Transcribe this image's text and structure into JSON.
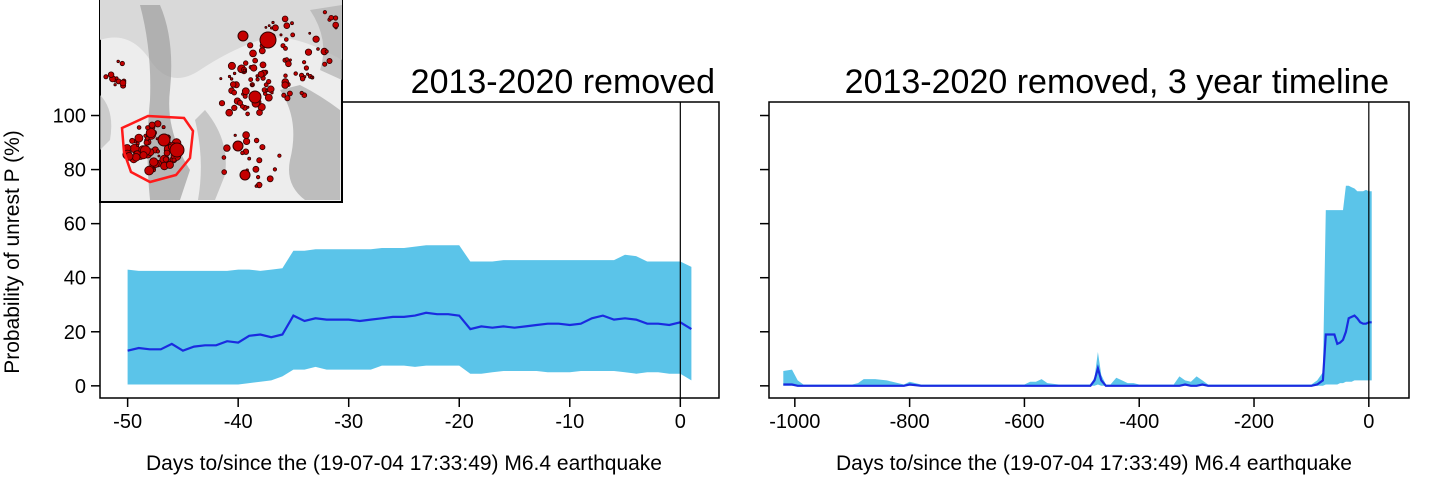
{
  "chart_data": [
    {
      "type": "area",
      "title": "2013-2020 removed",
      "xlabel": "Days to/since the (19-07-04 17:33:49) M6.4 earthquake",
      "ylabel": "Probability of unrest P (%)",
      "xlim": [
        -52.5,
        3.5
      ],
      "ylim": [
        -4.5,
        105
      ],
      "xticks": [
        -50,
        -40,
        -30,
        -20,
        -10,
        0
      ],
      "yticks": [
        0,
        20,
        40,
        60,
        80,
        100
      ],
      "event_line_x": 0,
      "band_color": "#5BC4E9",
      "line_color": "#1A2BE0",
      "x": [
        -50,
        -49,
        -48,
        -47,
        -46,
        -45,
        -44,
        -43,
        -42,
        -41,
        -40,
        -39,
        -38,
        -37,
        -36,
        -35,
        -34,
        -33,
        -32,
        -31,
        -30,
        -29,
        -28,
        -27,
        -26,
        -25,
        -24,
        -23,
        -22,
        -21,
        -20,
        -19,
        -18,
        -17,
        -16,
        -15,
        -14,
        -13,
        -12,
        -11,
        -10,
        -9,
        -8,
        -7,
        -6,
        -5,
        -4,
        -3,
        -2,
        -1,
        0,
        1
      ],
      "median": [
        13,
        14,
        13.5,
        13.5,
        15.5,
        13,
        14.5,
        15,
        15,
        16.5,
        16,
        18.5,
        19,
        18,
        19,
        26,
        24,
        25,
        24.5,
        24.5,
        24.5,
        24,
        24.5,
        25,
        25.5,
        25.5,
        26,
        27,
        26.5,
        26.5,
        26,
        21,
        22,
        21.5,
        22,
        21.5,
        22,
        22.5,
        23,
        23,
        22.5,
        23,
        25,
        26,
        24.5,
        25,
        24.5,
        23,
        23,
        22.5,
        23.5,
        21
      ],
      "upper": [
        43,
        42.5,
        42.5,
        42.5,
        42.5,
        42.5,
        42.5,
        42.5,
        42.5,
        42.5,
        43,
        43,
        42.5,
        43,
        43.5,
        50,
        50,
        50.5,
        50.5,
        50.5,
        50.5,
        50.5,
        50.5,
        51,
        51,
        51,
        51.5,
        52,
        52,
        52,
        52,
        46,
        46,
        46,
        46.5,
        46.5,
        46.5,
        46.5,
        46.5,
        46.5,
        46.5,
        46.5,
        46.5,
        46.5,
        46.5,
        48.5,
        48,
        46,
        46,
        46,
        46,
        44
      ],
      "lower": [
        0.5,
        0.5,
        0.5,
        0.5,
        0.5,
        0.5,
        0.5,
        0.5,
        0.5,
        0.5,
        0.5,
        1,
        1.5,
        2,
        3.5,
        6,
        6,
        7,
        6,
        6,
        6,
        6,
        6,
        7.5,
        7.5,
        7.5,
        7,
        7.5,
        7.5,
        7.5,
        7.5,
        4.5,
        4.5,
        5,
        5.5,
        5.5,
        5.5,
        5.5,
        5,
        5,
        5,
        5.5,
        5.5,
        5.5,
        5.5,
        5,
        4.5,
        5,
        5,
        4.5,
        4.5,
        2
      ]
    },
    {
      "type": "area",
      "title": "2013-2020 removed, 3 year timeline",
      "xlabel": "Days to/since the (19-07-04 17:33:49) M6.4 earthquake",
      "ylabel": "",
      "xlim": [
        -1045,
        70
      ],
      "ylim": [
        -4.5,
        105
      ],
      "xticks": [
        -1000,
        -800,
        -600,
        -400,
        -200,
        0
      ],
      "yticks": [
        0,
        20,
        40,
        60,
        80,
        100
      ],
      "event_line_x": 0,
      "band_color": "#5BC4E9",
      "line_color": "#1A2BE0",
      "x": [
        -1020,
        -1005,
        -995,
        -985,
        -950,
        -900,
        -890,
        -880,
        -860,
        -840,
        -820,
        -810,
        -800,
        -780,
        -760,
        -740,
        -700,
        -600,
        -590,
        -580,
        -570,
        -560,
        -540,
        -520,
        -500,
        -485,
        -478,
        -472,
        -466,
        -458,
        -450,
        -440,
        -430,
        -420,
        -410,
        -400,
        -380,
        -360,
        -350,
        -340,
        -330,
        -320,
        -310,
        -300,
        -290,
        -280,
        -260,
        -220,
        -180,
        -140,
        -110,
        -100,
        -90,
        -80,
        -75,
        -70,
        -60,
        -55,
        -50,
        -45,
        -40,
        -35,
        -30,
        -25,
        -20,
        -15,
        -10,
        -5,
        0,
        5
      ],
      "median": [
        0.5,
        0.5,
        0,
        0,
        0,
        0,
        0,
        0,
        0,
        0,
        0,
        0,
        0.5,
        0,
        0,
        0,
        0,
        0,
        0,
        0,
        0,
        0,
        0,
        0,
        0,
        0,
        2,
        6.5,
        2,
        0,
        0,
        0,
        0,
        0,
        0,
        0,
        0,
        0,
        0,
        0,
        0,
        0.5,
        0,
        0,
        0.5,
        0,
        0,
        0,
        0,
        0,
        0,
        0,
        0.5,
        2,
        19,
        19,
        19,
        15.5,
        16,
        17,
        20,
        25,
        25.5,
        26,
        25,
        23.5,
        23,
        23,
        23.5,
        23.5
      ],
      "upper": [
        5.5,
        6,
        2,
        0.5,
        0.5,
        0.5,
        1,
        2.5,
        2.5,
        2,
        1,
        0.5,
        1.5,
        0.5,
        0.5,
        0.5,
        0.5,
        0.5,
        1.5,
        1.5,
        2.5,
        1,
        0.5,
        0.5,
        0.5,
        0.5,
        3,
        12.5,
        4,
        0.5,
        0.5,
        3,
        2,
        1,
        1,
        0.5,
        0.5,
        0.5,
        0.5,
        0.5,
        3.5,
        2,
        1.5,
        3.5,
        2,
        0.5,
        0.5,
        0.5,
        0.5,
        0.5,
        0.5,
        0.5,
        2,
        5,
        65,
        65,
        65,
        65,
        65,
        65,
        74,
        74,
        73.5,
        73,
        72,
        72,
        72,
        72.5,
        72,
        72
      ],
      "lower": [
        0,
        0,
        0,
        0,
        0,
        0,
        0,
        0,
        0,
        0,
        0,
        0,
        0,
        0,
        0,
        0,
        0,
        0,
        0,
        0,
        0,
        0,
        0,
        0,
        0,
        0,
        0,
        0.5,
        0,
        0,
        0,
        0,
        0,
        0,
        0,
        0,
        0,
        0,
        0,
        0,
        0,
        0,
        0,
        0,
        0,
        0,
        0,
        0,
        0,
        0,
        0,
        0,
        0,
        0,
        0.5,
        0.5,
        0.5,
        0.5,
        1,
        1,
        1.5,
        1.5,
        1.5,
        2,
        2,
        2,
        2,
        2,
        2,
        2
      ]
    }
  ]
}
